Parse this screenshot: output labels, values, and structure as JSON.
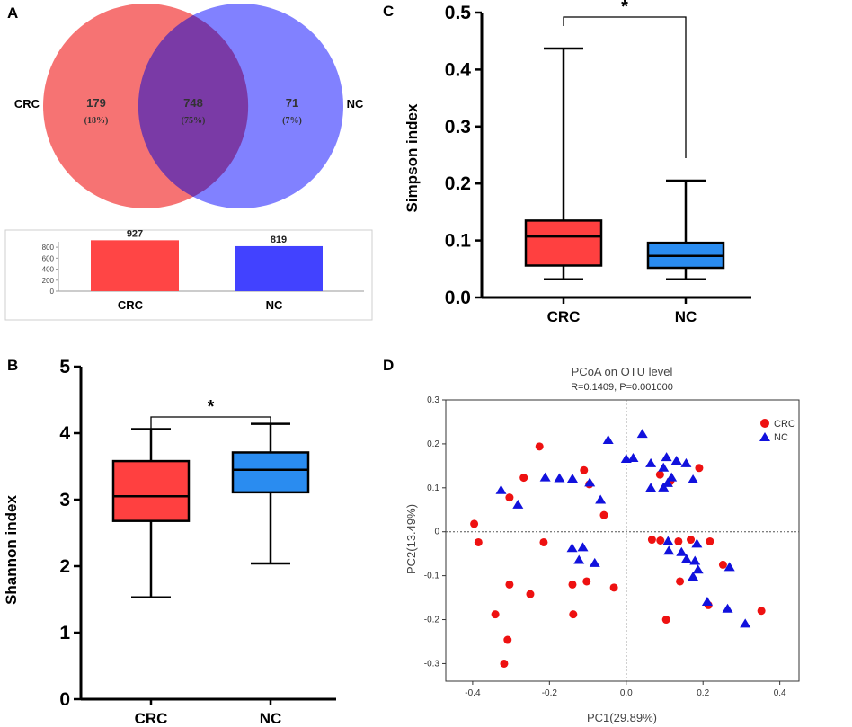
{
  "panel_labels": {
    "a": "A",
    "b": "B",
    "c": "C",
    "d": "D"
  },
  "colors": {
    "crc": "#ff4040",
    "nc": "#2a8cf0",
    "venn_crc": "#f45b5b",
    "venn_nc": "#6b6bff",
    "venn_overlap": "#7a3aa6",
    "bar_crc": "#ff4545",
    "bar_nc": "#4242ff",
    "scatter_crc": "#ee1111",
    "scatter_nc": "#1111dd"
  },
  "chart_data": [
    {
      "panel": "A",
      "type": "venn",
      "sets": [
        "CRC",
        "NC"
      ],
      "regions": [
        {
          "name": "CRC only",
          "value": "179",
          "percent": "(18%)"
        },
        {
          "name": "shared",
          "value": "748",
          "percent": "(75%)"
        },
        {
          "name": "NC only",
          "value": "71",
          "percent": "(7%)"
        }
      ],
      "bar": {
        "type": "bar",
        "categories": [
          "CRC",
          "NC"
        ],
        "values": [
          927,
          819
        ],
        "value_labels": [
          "927",
          "819"
        ],
        "ylim": [
          0,
          900
        ],
        "yticks": [
          0,
          200,
          400,
          600,
          800
        ],
        "ytick_labels": [
          "0",
          "200",
          "400",
          "600",
          "800"
        ]
      }
    },
    {
      "panel": "B",
      "type": "box",
      "ylabel": "Shannon index",
      "ylim": [
        0,
        5
      ],
      "yticks": [
        0,
        1,
        2,
        3,
        4,
        5
      ],
      "ytick_labels": [
        "0",
        "1",
        "2",
        "3",
        "4",
        "5"
      ],
      "categories": [
        "CRC",
        "NC"
      ],
      "boxes": [
        {
          "name": "CRC",
          "min": 1.53,
          "q1": 2.68,
          "median": 3.05,
          "q3": 3.58,
          "max": 4.06
        },
        {
          "name": "NC",
          "min": 2.04,
          "q1": 3.11,
          "median": 3.45,
          "q3": 3.71,
          "max": 4.14
        }
      ],
      "significance": "*"
    },
    {
      "panel": "C",
      "type": "box",
      "ylabel": "Simpson index",
      "ylim": [
        0,
        0.5
      ],
      "yticks": [
        0,
        0.1,
        0.2,
        0.3,
        0.4,
        0.5
      ],
      "ytick_labels": [
        "0.0",
        "0.1",
        "0.2",
        "0.3",
        "0.4",
        "0.5"
      ],
      "categories": [
        "CRC",
        "NC"
      ],
      "boxes": [
        {
          "name": "CRC",
          "min": 0.032,
          "q1": 0.056,
          "median": 0.107,
          "q3": 0.135,
          "max": 0.437
        },
        {
          "name": "NC",
          "min": 0.032,
          "q1": 0.052,
          "median": 0.073,
          "q3": 0.096,
          "max": 0.205
        }
      ],
      "significance": "*"
    },
    {
      "panel": "D",
      "type": "scatter",
      "title": "PCoA on OTU level",
      "subtitle": "R=0.1409, P=0.001000",
      "xlabel": "PC1(29.89%)",
      "ylabel": "PC2(13.49%)",
      "xlim": [
        -0.47,
        0.45
      ],
      "ylim": [
        -0.34,
        0.3
      ],
      "xticks": [
        -0.4,
        -0.2,
        0,
        0.2,
        0.4
      ],
      "xtick_labels": [
        "-0.4",
        "-0.2",
        "0.0",
        "0.2",
        "0.4"
      ],
      "yticks": [
        -0.3,
        -0.2,
        -0.1,
        0,
        0.1,
        0.2,
        0.3
      ],
      "ytick_labels": [
        "-0.3",
        "-0.2",
        "-0.1",
        "0",
        "0.1",
        "0.2",
        "0.3"
      ],
      "legend_position": "top-right",
      "series": [
        {
          "name": "CRC",
          "marker": "circle",
          "points": [
            [
              -0.226,
              0.194
            ],
            [
              -0.267,
              0.123
            ],
            [
              -0.304,
              0.078
            ],
            [
              -0.11,
              0.14
            ],
            [
              -0.096,
              0.108
            ],
            [
              -0.058,
              0.038
            ],
            [
              -0.396,
              0.018
            ],
            [
              -0.385,
              -0.024
            ],
            [
              -0.215,
              -0.024
            ],
            [
              -0.103,
              -0.113
            ],
            [
              -0.14,
              -0.12
            ],
            [
              -0.032,
              -0.127
            ],
            [
              -0.25,
              -0.142
            ],
            [
              -0.304,
              -0.12
            ],
            [
              -0.341,
              -0.188
            ],
            [
              -0.138,
              -0.188
            ],
            [
              -0.309,
              -0.246
            ],
            [
              -0.318,
              -0.3
            ],
            [
              0.088,
              0.13
            ],
            [
              0.115,
              0.115
            ],
            [
              0.19,
              0.145
            ],
            [
              0.067,
              -0.018
            ],
            [
              0.089,
              -0.02
            ],
            [
              0.168,
              -0.018
            ],
            [
              0.218,
              -0.022
            ],
            [
              0.136,
              -0.022
            ],
            [
              0.14,
              -0.113
            ],
            [
              0.252,
              -0.075
            ],
            [
              0.214,
              -0.167
            ],
            [
              0.104,
              -0.2
            ],
            [
              0.352,
              -0.18
            ]
          ]
        },
        {
          "name": "NC",
          "marker": "triangle",
          "points": [
            [
              -0.047,
              0.208
            ],
            [
              0.042,
              0.222
            ],
            [
              0.0,
              0.165
            ],
            [
              0.018,
              0.167
            ],
            [
              -0.174,
              0.121
            ],
            [
              -0.14,
              0.12
            ],
            [
              -0.095,
              0.111
            ],
            [
              -0.282,
              0.061
            ],
            [
              -0.211,
              0.123
            ],
            [
              -0.326,
              0.094
            ],
            [
              -0.067,
              0.072
            ],
            [
              0.064,
              0.155
            ],
            [
              0.105,
              0.169
            ],
            [
              0.131,
              0.161
            ],
            [
              0.156,
              0.155
            ],
            [
              0.097,
              0.145
            ],
            [
              0.118,
              0.123
            ],
            [
              0.108,
              0.11
            ],
            [
              0.097,
              0.1
            ],
            [
              0.064,
              0.099
            ],
            [
              0.174,
              0.118
            ],
            [
              -0.141,
              -0.038
            ],
            [
              -0.113,
              -0.036
            ],
            [
              -0.123,
              -0.065
            ],
            [
              -0.082,
              -0.072
            ],
            [
              0.109,
              -0.022
            ],
            [
              0.111,
              -0.044
            ],
            [
              0.144,
              -0.047
            ],
            [
              0.184,
              -0.028
            ],
            [
              0.157,
              -0.063
            ],
            [
              0.179,
              -0.067
            ],
            [
              0.187,
              -0.087
            ],
            [
              0.174,
              -0.103
            ],
            [
              0.211,
              -0.16
            ],
            [
              0.269,
              -0.081
            ],
            [
              0.264,
              -0.176
            ],
            [
              0.31,
              -0.21
            ]
          ]
        }
      ]
    }
  ]
}
